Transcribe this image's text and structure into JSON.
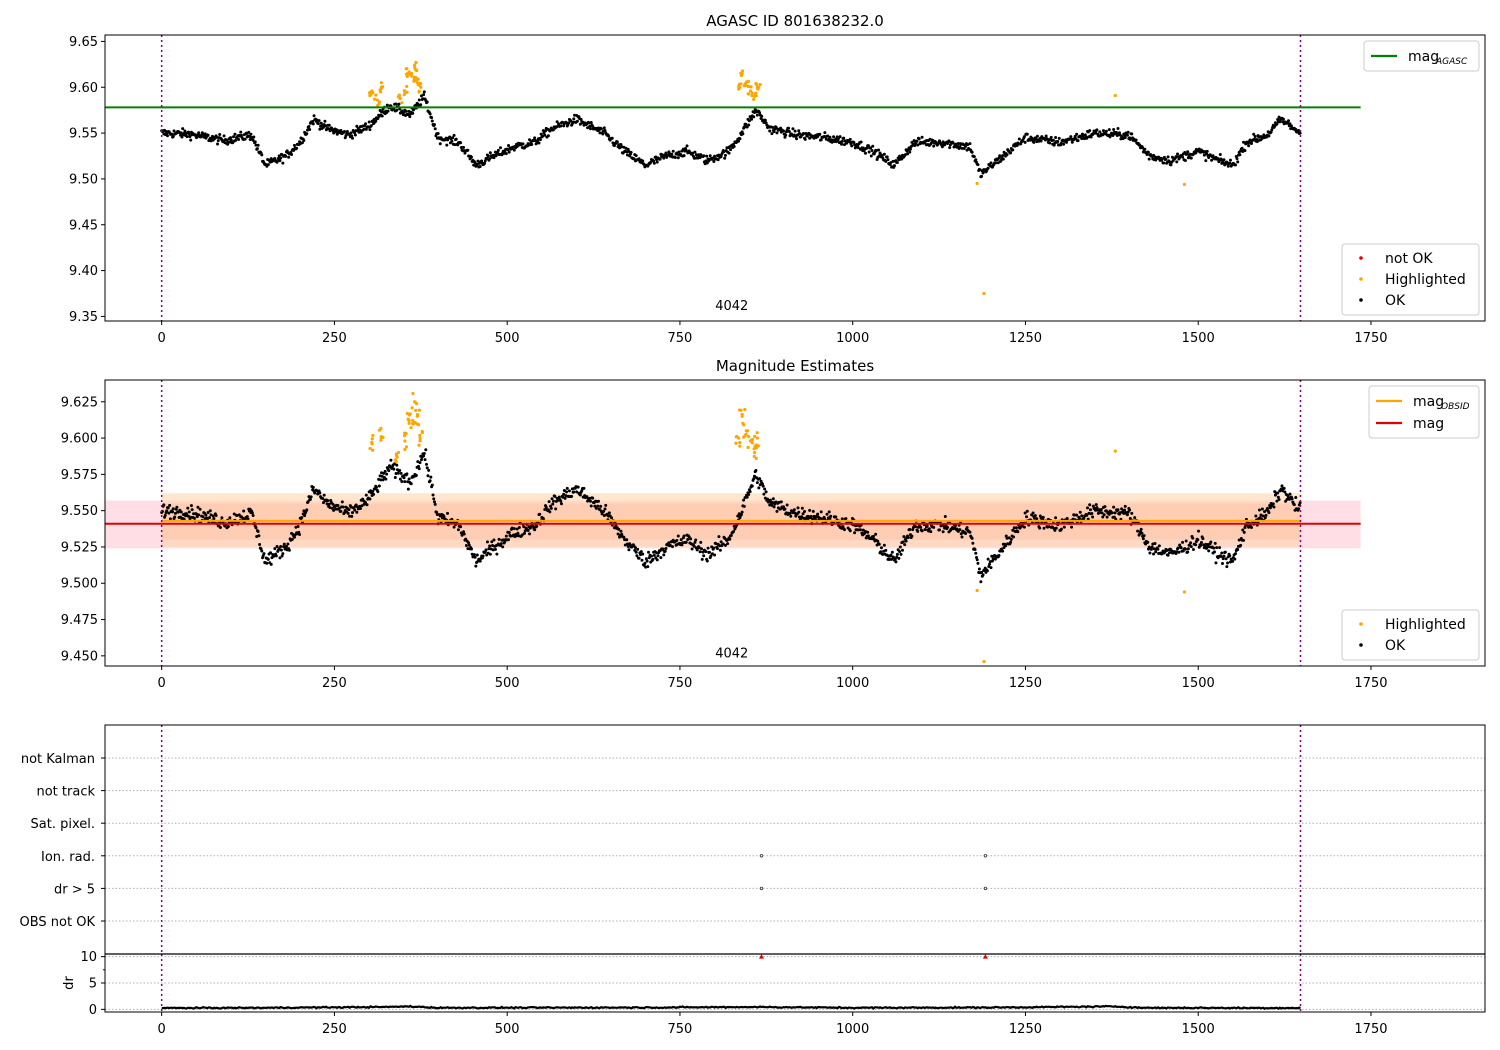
{
  "chart_data": [
    {
      "type": "scatter",
      "title": "AGASC ID 801638232.0",
      "xlim": [
        -82,
        1915
      ],
      "ylim": [
        9.345,
        9.657
      ],
      "xticks": [
        0,
        250,
        500,
        750,
        1000,
        1250,
        1500,
        1750
      ],
      "yticks": [
        9.35,
        9.4,
        9.45,
        9.5,
        9.55,
        9.6,
        9.65
      ],
      "y_precision": 2,
      "annotation": {
        "text": "4042",
        "x": 825,
        "y": 9.357
      },
      "reference_lines": [
        {
          "label": "mag_AGASC",
          "y": 9.578,
          "x_range": [
            -82,
            1735
          ],
          "color": "#008000"
        }
      ],
      "vlines": [
        0,
        1648
      ],
      "series": [
        {
          "name": "not OK",
          "color": "#e00000",
          "points": []
        },
        {
          "name": "Highlighted",
          "color": "#ffa500",
          "points": [
            [
              304,
              9.596
            ],
            [
              312,
              9.586
            ],
            [
              318,
              9.6
            ],
            [
              345,
              9.588
            ],
            [
              352,
              9.595
            ],
            [
              356,
              9.615
            ],
            [
              362,
              9.612
            ],
            [
              366,
              9.624
            ],
            [
              370,
              9.605
            ],
            [
              375,
              9.6
            ],
            [
              835,
              9.598
            ],
            [
              840,
              9.615
            ],
            [
              846,
              9.602
            ],
            [
              852,
              9.596
            ],
            [
              858,
              9.59
            ],
            [
              862,
              9.6
            ],
            [
              1380,
              9.591
            ],
            [
              1180,
              9.495
            ],
            [
              1190,
              9.375
            ],
            [
              1480,
              9.494
            ]
          ]
        },
        {
          "name": "OK",
          "color": "#000000",
          "anchors": [
            [
              0,
              9.55
            ],
            [
              40,
              9.549
            ],
            [
              90,
              9.542
            ],
            [
              130,
              9.548
            ],
            [
              150,
              9.515
            ],
            [
              180,
              9.525
            ],
            [
              200,
              9.54
            ],
            [
              220,
              9.565
            ],
            [
              240,
              9.555
            ],
            [
              270,
              9.548
            ],
            [
              300,
              9.558
            ],
            [
              330,
              9.58
            ],
            [
              360,
              9.57
            ],
            [
              380,
              9.59
            ],
            [
              400,
              9.545
            ],
            [
              430,
              9.54
            ],
            [
              455,
              9.515
            ],
            [
              480,
              9.525
            ],
            [
              510,
              9.535
            ],
            [
              540,
              9.54
            ],
            [
              565,
              9.555
            ],
            [
              600,
              9.565
            ],
            [
              640,
              9.55
            ],
            [
              670,
              9.53
            ],
            [
              700,
              9.515
            ],
            [
              730,
              9.525
            ],
            [
              760,
              9.53
            ],
            [
              790,
              9.52
            ],
            [
              820,
              9.53
            ],
            [
              835,
              9.545
            ],
            [
              860,
              9.575
            ],
            [
              880,
              9.555
            ],
            [
              920,
              9.548
            ],
            [
              960,
              9.545
            ],
            [
              1000,
              9.54
            ],
            [
              1030,
              9.53
            ],
            [
              1060,
              9.515
            ],
            [
              1090,
              9.54
            ],
            [
              1130,
              9.54
            ],
            [
              1170,
              9.535
            ],
            [
              1185,
              9.505
            ],
            [
              1210,
              9.52
            ],
            [
              1250,
              9.545
            ],
            [
              1300,
              9.54
            ],
            [
              1350,
              9.55
            ],
            [
              1400,
              9.548
            ],
            [
              1430,
              9.525
            ],
            [
              1460,
              9.52
            ],
            [
              1480,
              9.525
            ],
            [
              1500,
              9.53
            ],
            [
              1530,
              9.52
            ],
            [
              1550,
              9.515
            ],
            [
              1570,
              9.54
            ],
            [
              1600,
              9.548
            ],
            [
              1620,
              9.565
            ],
            [
              1648,
              9.55
            ]
          ],
          "scatter": 0.0065
        }
      ],
      "legend": [
        {
          "label": "mag",
          "sub": "AGASC",
          "kind": "line",
          "color": "#008000",
          "loc": "upper right"
        },
        {
          "label": "not OK",
          "kind": "dot",
          "color": "#e00000",
          "loc": "lower right"
        },
        {
          "label": "Highlighted",
          "kind": "dot",
          "color": "#ffa500",
          "loc": "lower right"
        },
        {
          "label": "OK",
          "kind": "dot",
          "color": "#000000",
          "loc": "lower right"
        }
      ]
    },
    {
      "type": "scatter",
      "title": "Magnitude Estimates",
      "xlim": [
        -82,
        1915
      ],
      "ylim": [
        9.443,
        9.64
      ],
      "xticks": [
        0,
        250,
        500,
        750,
        1000,
        1250,
        1500,
        1750
      ],
      "yticks": [
        9.45,
        9.475,
        9.5,
        9.525,
        9.55,
        9.575,
        9.6,
        9.625
      ],
      "y_precision": 3,
      "annotation": {
        "text": "4042",
        "x": 825,
        "y": 9.449
      },
      "bands": [
        {
          "y0": 9.524,
          "y1": 9.557,
          "x_range": [
            -82,
            1735
          ],
          "color": "#ffc0cb",
          "opacity": 0.5
        },
        {
          "y0": 9.525,
          "y1": 9.562,
          "x_range": [
            0,
            1648
          ],
          "color": "#ffd4a8",
          "opacity": 0.55
        },
        {
          "y0": 9.53,
          "y1": 9.555,
          "x_range": [
            0,
            1648
          ],
          "color": "#ffb894",
          "opacity": 0.35
        }
      ],
      "reference_lines": [
        {
          "label": "mag_OBSID",
          "y": 9.543,
          "x_range": [
            0,
            1648
          ],
          "color": "#ffa500"
        },
        {
          "label": "mag",
          "y": 9.541,
          "x_range": [
            -82,
            1735
          ],
          "color": "#e00000"
        }
      ],
      "vlines": [
        0,
        1648
      ],
      "series": [
        {
          "name": "Highlighted",
          "color": "#ffa500",
          "points": [
            [
              304,
              9.597
            ],
            [
              318,
              9.601
            ],
            [
              340,
              9.588
            ],
            [
              352,
              9.598
            ],
            [
              358,
              9.612
            ],
            [
              363,
              9.61
            ],
            [
              366,
              9.625
            ],
            [
              370,
              9.615
            ],
            [
              374,
              9.6
            ],
            [
              835,
              9.6
            ],
            [
              840,
              9.615
            ],
            [
              846,
              9.605
            ],
            [
              852,
              9.598
            ],
            [
              858,
              9.59
            ],
            [
              862,
              9.6
            ],
            [
              1380,
              9.591
            ],
            [
              1180,
              9.495
            ],
            [
              1190,
              9.446
            ],
            [
              1480,
              9.494
            ]
          ]
        },
        {
          "name": "OK",
          "color": "#000000",
          "anchors": [
            [
              0,
              9.55
            ],
            [
              40,
              9.549
            ],
            [
              90,
              9.542
            ],
            [
              130,
              9.548
            ],
            [
              150,
              9.515
            ],
            [
              180,
              9.525
            ],
            [
              200,
              9.54
            ],
            [
              220,
              9.565
            ],
            [
              240,
              9.555
            ],
            [
              270,
              9.548
            ],
            [
              300,
              9.558
            ],
            [
              330,
              9.58
            ],
            [
              360,
              9.57
            ],
            [
              380,
              9.59
            ],
            [
              400,
              9.545
            ],
            [
              430,
              9.54
            ],
            [
              455,
              9.515
            ],
            [
              480,
              9.525
            ],
            [
              510,
              9.535
            ],
            [
              540,
              9.54
            ],
            [
              565,
              9.555
            ],
            [
              600,
              9.565
            ],
            [
              640,
              9.55
            ],
            [
              670,
              9.53
            ],
            [
              700,
              9.515
            ],
            [
              730,
              9.525
            ],
            [
              760,
              9.53
            ],
            [
              790,
              9.52
            ],
            [
              820,
              9.53
            ],
            [
              835,
              9.545
            ],
            [
              860,
              9.575
            ],
            [
              880,
              9.555
            ],
            [
              920,
              9.548
            ],
            [
              960,
              9.545
            ],
            [
              1000,
              9.54
            ],
            [
              1030,
              9.53
            ],
            [
              1060,
              9.515
            ],
            [
              1090,
              9.54
            ],
            [
              1130,
              9.54
            ],
            [
              1170,
              9.535
            ],
            [
              1185,
              9.505
            ],
            [
              1210,
              9.52
            ],
            [
              1250,
              9.545
            ],
            [
              1300,
              9.54
            ],
            [
              1350,
              9.55
            ],
            [
              1400,
              9.548
            ],
            [
              1430,
              9.525
            ],
            [
              1460,
              9.52
            ],
            [
              1480,
              9.525
            ],
            [
              1500,
              9.53
            ],
            [
              1530,
              9.52
            ],
            [
              1550,
              9.515
            ],
            [
              1570,
              9.54
            ],
            [
              1600,
              9.548
            ],
            [
              1620,
              9.565
            ],
            [
              1648,
              9.55
            ]
          ],
          "scatter": 0.0065
        }
      ],
      "legend": [
        {
          "label": "mag",
          "sub": "OBSID",
          "kind": "line",
          "color": "#ffa500",
          "loc": "upper right"
        },
        {
          "label": "mag",
          "kind": "line",
          "color": "#e00000",
          "loc": "upper right"
        },
        {
          "label": "Highlighted",
          "kind": "dot",
          "color": "#ffa500",
          "loc": "lower right"
        },
        {
          "label": "OK",
          "kind": "dot",
          "color": "#000000",
          "loc": "lower right"
        }
      ]
    },
    {
      "type": "scatter",
      "title": "",
      "xlim": [
        -82,
        1915
      ],
      "categories": [
        "not Kalman",
        "not track",
        "Sat. pixel.",
        "Ion. rad.",
        "dr > 5",
        "OBS not OK"
      ],
      "flag_points": [
        {
          "category": "Ion. rad.",
          "x": [
            868,
            1192
          ]
        },
        {
          "category": "dr > 5",
          "x": [
            868,
            1192
          ]
        }
      ],
      "vlines": [
        0,
        1648
      ]
    },
    {
      "type": "line",
      "title": "",
      "ylabel": "dr",
      "xlim": [
        -82,
        1915
      ],
      "ylim": [
        -0.5,
        10.5
      ],
      "yticks": [
        0,
        5,
        10
      ],
      "xticks": [
        0,
        250,
        500,
        750,
        1000,
        1250,
        1500,
        1750
      ],
      "series": [
        {
          "name": "dr",
          "color": "#000000",
          "anchors": [
            [
              0,
              0.25
            ],
            [
              150,
              0.3
            ],
            [
              320,
              0.45
            ],
            [
              360,
              0.55
            ],
            [
              400,
              0.3
            ],
            [
              700,
              0.35
            ],
            [
              860,
              0.45
            ],
            [
              1000,
              0.3
            ],
            [
              1200,
              0.35
            ],
            [
              1380,
              0.55
            ],
            [
              1420,
              0.3
            ],
            [
              1648,
              0.25
            ]
          ]
        },
        {
          "name": "dr > 5",
          "color": "#e00000",
          "points": [
            [
              868,
              10
            ],
            [
              1192,
              10
            ]
          ]
        }
      ],
      "vlines": [
        0,
        1648
      ]
    }
  ]
}
